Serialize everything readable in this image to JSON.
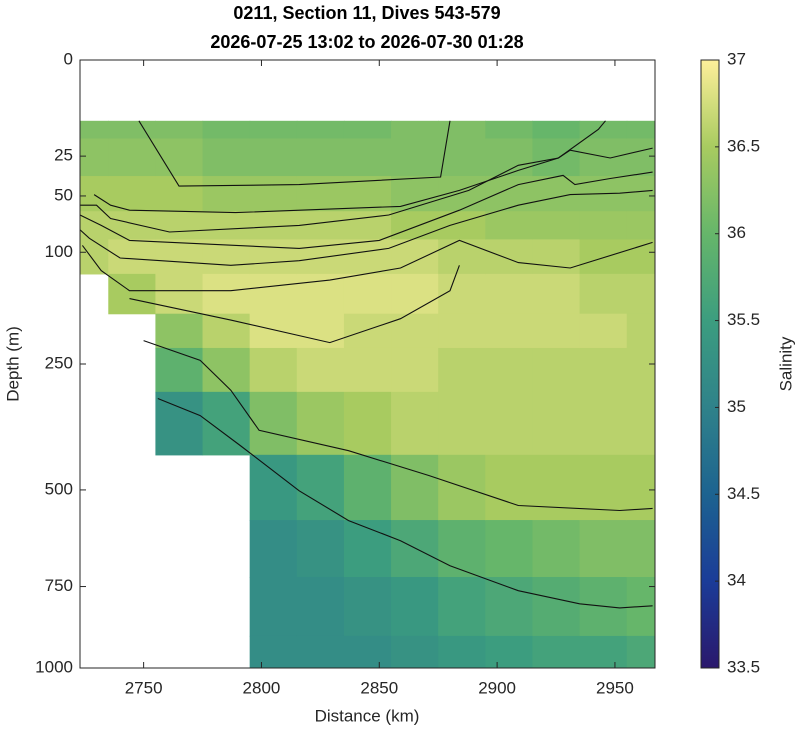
{
  "chart_data": {
    "type": "contour",
    "title": "0211, Section 11, Dives 543-579",
    "subtitle": "2026-07-25 13:02 to 2026-07-30 01:28",
    "xlabel": "Distance (km)",
    "ylabel": "Depth (m)",
    "colorbar_label": "Salinity",
    "xlim": [
      2723,
      2967
    ],
    "xticks": [
      2750,
      2800,
      2850,
      2900,
      2950
    ],
    "ylim": [
      0,
      1000
    ],
    "yticks": [
      0,
      25,
      50,
      100,
      250,
      500,
      750,
      1000
    ],
    "yscale": "sqrt",
    "yreverse": true,
    "clim": [
      33.5,
      37
    ],
    "cticks": [
      33.5,
      34,
      34.5,
      35,
      35.5,
      36,
      36.5,
      37
    ],
    "colormap": [
      "#2a186c",
      "#1b3c98",
      "#1d6390",
      "#2f828a",
      "#3c9d7f",
      "#66b66a",
      "#a8cb60",
      "#fdef9a"
    ],
    "x": [
      2725,
      2745,
      2765,
      2785,
      2805,
      2825,
      2845,
      2865,
      2885,
      2905,
      2925,
      2945,
      2965
    ],
    "y": [
      10,
      25,
      50,
      75,
      100,
      150,
      200,
      250,
      350,
      500,
      650,
      800,
      1000
    ],
    "z": [
      [
        36.2,
        36.3,
        36.5,
        36.6,
        36.6,
        null,
        null,
        null,
        null,
        null,
        null,
        null,
        null
      ],
      [
        36.2,
        36.3,
        36.5,
        36.6,
        36.7,
        36.5,
        null,
        null,
        null,
        null,
        null,
        null,
        null
      ],
      [
        36.2,
        36.3,
        36.5,
        36.6,
        36.7,
        36.7,
        36.3,
        35.9,
        35.3,
        null,
        null,
        null,
        null
      ],
      [
        36.1,
        36.2,
        36.4,
        36.6,
        36.7,
        36.8,
        36.6,
        36.3,
        35.6,
        null,
        null,
        null,
        null
      ],
      [
        36.1,
        36.2,
        36.4,
        36.6,
        36.7,
        36.8,
        36.8,
        36.6,
        36.2,
        35.4,
        35.2,
        35.2,
        35.2
      ],
      [
        36.1,
        36.2,
        36.4,
        36.6,
        36.7,
        36.8,
        36.8,
        36.7,
        36.4,
        35.6,
        35.3,
        35.2,
        35.2
      ],
      [
        36.1,
        36.2,
        36.4,
        36.6,
        36.7,
        36.8,
        36.7,
        36.7,
        36.5,
        35.9,
        35.5,
        35.3,
        35.2
      ],
      [
        36.2,
        36.2,
        36.3,
        36.5,
        36.7,
        36.8,
        36.7,
        36.7,
        36.6,
        36.2,
        35.7,
        35.4,
        35.3
      ],
      [
        36.2,
        36.2,
        36.3,
        36.5,
        36.6,
        36.7,
        36.7,
        36.6,
        36.6,
        36.4,
        35.9,
        35.6,
        35.4
      ],
      [
        36.1,
        36.2,
        36.3,
        36.4,
        36.6,
        36.7,
        36.7,
        36.6,
        36.6,
        36.5,
        36.0,
        35.7,
        35.5
      ],
      [
        36.0,
        36.1,
        36.3,
        36.4,
        36.6,
        36.7,
        36.7,
        36.6,
        36.6,
        36.5,
        36.1,
        35.8,
        35.6
      ],
      [
        36.1,
        36.2,
        36.3,
        36.4,
        36.5,
        36.6,
        36.7,
        36.6,
        36.6,
        36.5,
        36.2,
        35.9,
        35.6
      ],
      [
        36.1,
        36.2,
        36.3,
        36.4,
        36.5,
        36.6,
        36.6,
        36.6,
        36.6,
        36.5,
        36.2,
        36.0,
        35.7
      ]
    ],
    "contours": [
      {
        "x": [
          2748,
          2765,
          2816,
          2876,
          2880
        ],
        "y": [
          10,
          43,
          42,
          37,
          10
        ]
      },
      {
        "x": [
          2729,
          2736,
          2744,
          2789,
          2859,
          2884,
          2909,
          2926,
          2943,
          2946
        ],
        "y": [
          49,
          57,
          61,
          63,
          58,
          46,
          33,
          26,
          13,
          10
        ]
      },
      {
        "x": [
          2723,
          2730,
          2736,
          2761,
          2816,
          2854,
          2888,
          2909,
          2926,
          2931,
          2948,
          2966
        ],
        "y": [
          57,
          57,
          68,
          80,
          74,
          65,
          46,
          30,
          26,
          22,
          26,
          21
        ]
      },
      {
        "x": [
          2723,
          2732,
          2744,
          2816,
          2850,
          2884,
          2909,
          2928,
          2933,
          2948,
          2966
        ],
        "y": [
          65,
          74,
          88,
          96,
          88,
          61,
          42,
          36,
          42,
          38,
          34
        ]
      },
      {
        "x": [
          2723,
          2727,
          2740,
          2787,
          2816,
          2854,
          2880,
          2909,
          2931,
          2952,
          2966
        ],
        "y": [
          78,
          86,
          106,
          114,
          109,
          96,
          74,
          57,
          49,
          48,
          46
        ]
      },
      {
        "x": [
          2724,
          2732,
          2744,
          2787,
          2829,
          2859,
          2884,
          2909,
          2931,
          2966
        ],
        "y": [
          93,
          120,
          144,
          144,
          131,
          117,
          88,
          111,
          117,
          90
        ]
      },
      {
        "x": [
          2744,
          2787,
          2829,
          2859,
          2880,
          2884
        ],
        "y": [
          154,
          183,
          216,
          181,
          144,
          114
        ]
      },
      {
        "x": [
          2750,
          2774,
          2787,
          2799,
          2837,
          2871,
          2909,
          2952,
          2966
        ],
        "y": [
          213,
          244,
          295,
          371,
          413,
          467,
          537,
          549,
          544
        ]
      },
      {
        "x": [
          2756,
          2774,
          2791,
          2816,
          2837,
          2859,
          2880,
          2909,
          2935,
          2952,
          2966
        ],
        "y": [
          310,
          342,
          402,
          502,
          574,
          625,
          692,
          762,
          800,
          812,
          806
        ]
      }
    ]
  }
}
